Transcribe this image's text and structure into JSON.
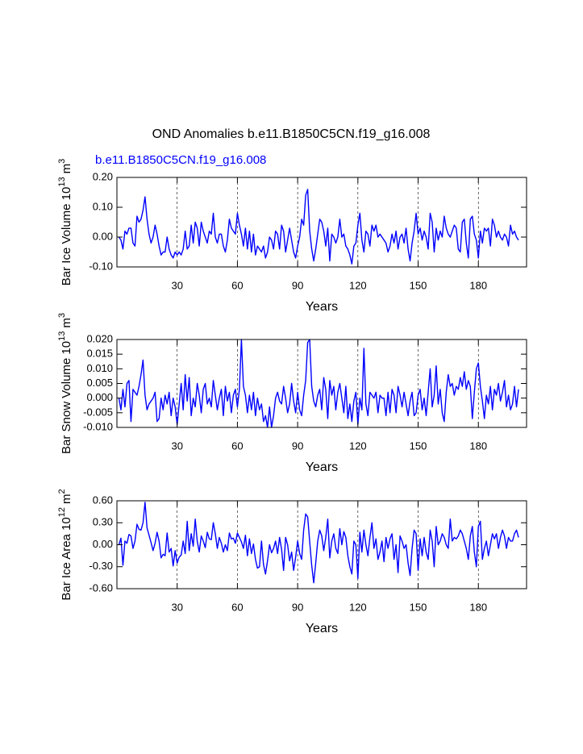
{
  "title": "OND Anomalies b.e11.B1850C5CN.f19_g16.008",
  "chart_data": [
    {
      "type": "line",
      "subtitle": "b.e11.B1850C5CN.f19_g16.008",
      "subtitle_color": "#0000ff",
      "ylabel": {
        "text": "Bar Ice Volume 10",
        "exponent": "13",
        "unit": "m",
        "unit_exponent": "3"
      },
      "xlabel": "Years",
      "xlim": [
        0,
        204
      ],
      "xticks": [
        30,
        60,
        90,
        120,
        150,
        180
      ],
      "ylim": [
        -0.1,
        0.2
      ],
      "yticks": [
        {
          "value": 0.2,
          "label": "0.20"
        },
        {
          "value": 0.1,
          "label": "0.10"
        },
        {
          "value": 0,
          "label": "0.00"
        },
        {
          "value": -0.1,
          "label": "-0.10"
        }
      ],
      "grid": "x-dashed",
      "color": "#0000ff",
      "x": [
        1,
        2,
        3,
        4,
        5,
        6,
        7,
        8,
        9,
        10,
        11,
        12,
        13,
        14,
        15,
        16,
        17,
        18,
        19,
        20,
        21,
        22,
        23,
        24,
        25,
        26,
        27,
        28,
        29,
        30,
        31,
        32,
        33,
        34,
        35,
        36,
        37,
        38,
        39,
        40,
        41,
        42,
        43,
        44,
        45,
        46,
        47,
        48,
        49,
        50,
        51,
        52,
        53,
        54,
        55,
        56,
        57,
        58,
        59,
        60,
        61,
        62,
        63,
        64,
        65,
        66,
        67,
        68,
        69,
        70,
        71,
        72,
        73,
        74,
        75,
        76,
        77,
        78,
        79,
        80,
        81,
        82,
        83,
        84,
        85,
        86,
        87,
        88,
        89,
        90,
        91,
        92,
        93,
        94,
        95,
        96,
        97,
        98,
        99,
        100,
        101,
        102,
        103,
        104,
        105,
        106,
        107,
        108,
        109,
        110,
        111,
        112,
        113,
        114,
        115,
        116,
        117,
        118,
        119,
        120,
        121,
        122,
        123,
        124,
        125,
        126,
        127,
        128,
        129,
        130,
        131,
        132,
        133,
        134,
        135,
        136,
        137,
        138,
        139,
        140,
        141,
        142,
        143,
        144,
        145,
        146,
        147,
        148,
        149,
        150,
        151,
        152,
        153,
        154,
        155,
        156,
        157,
        158,
        159,
        160,
        161,
        162,
        163,
        164,
        165,
        166,
        167,
        168,
        169,
        170,
        171,
        172,
        173,
        174,
        175,
        176,
        177,
        178,
        179,
        180,
        181,
        182,
        183,
        184,
        185,
        186,
        187,
        188,
        189,
        190,
        191,
        192,
        193,
        194,
        195,
        196,
        197,
        198,
        199,
        200
      ],
      "values": [
        0.0,
        -0.01,
        -0.04,
        0.02,
        0.01,
        0.03,
        0.03,
        -0.02,
        -0.03,
        0.07,
        0.05,
        0.06,
        0.09,
        0.135,
        0.06,
        0.01,
        -0.02,
        0.0,
        0.04,
        0.01,
        -0.03,
        -0.06,
        -0.05,
        -0.05,
        0.0,
        -0.04,
        -0.06,
        -0.07,
        -0.05,
        -0.06,
        -0.05,
        -0.06,
        -0.04,
        0.02,
        -0.04,
        -0.03,
        0.04,
        -0.02,
        0.05,
        0.03,
        -0.03,
        0.05,
        0.02,
        0.0,
        -0.02,
        0.02,
        0.01,
        0.08,
        0.0,
        -0.02,
        0.01,
        0.01,
        -0.03,
        -0.05,
        -0.01,
        0.06,
        0.03,
        0.02,
        0.01,
        0.08,
        0.04,
        0.01,
        -0.03,
        0.03,
        -0.04,
        0.02,
        -0.05,
        0.01,
        -0.06,
        -0.03,
        -0.04,
        -0.05,
        -0.03,
        -0.07,
        -0.05,
        0.0,
        -0.01,
        -0.04,
        0.02,
        0.01,
        -0.04,
        0.04,
        0.02,
        -0.05,
        -0.01,
        0.03,
        -0.01,
        -0.05,
        -0.07,
        -0.03,
        0.0,
        0.06,
        0.04,
        0.14,
        0.16,
        0.02,
        -0.04,
        -0.08,
        -0.04,
        0.01,
        0.06,
        0.05,
        0.02,
        -0.03,
        0.03,
        -0.08,
        0.01,
        0.0,
        -0.02,
        0.0,
        0.06,
        0.0,
        0.01,
        -0.03,
        -0.04,
        -0.06,
        -0.09,
        -0.03,
        -0.02,
        0.04,
        0.08,
        -0.01,
        -0.05,
        0.02,
        0.01,
        -0.03,
        0.04,
        0.02,
        0.04,
        0.0,
        0.01,
        0.0,
        -0.01,
        -0.02,
        -0.05,
        -0.03,
        0.01,
        -0.02,
        0.02,
        -0.04,
        0.0,
        0.01,
        -0.02,
        0.03,
        -0.04,
        -0.08,
        -0.02,
        0.02,
        0.08,
        0.01,
        0.03,
        -0.01,
        0.02,
        0.0,
        -0.04,
        0.08,
        0.05,
        -0.05,
        0.03,
        -0.01,
        0.02,
        0.0,
        0.07,
        0.03,
        0.01,
        0.0,
        0.02,
        0.04,
        0.03,
        -0.04,
        -0.05,
        0.05,
        0.06,
        -0.02,
        -0.07,
        0.06,
        0.07,
        0.01,
        -0.01,
        -0.07,
        0.02,
        -0.02,
        0.03,
        0.02,
        0.03,
        -0.03,
        0.06,
        0.04,
        0.0,
        0.02,
        0.0,
        -0.01,
        0.01,
        0.0,
        -0.03,
        0.04,
        0.01,
        0.02,
        0.0,
        -0.01
      ]
    },
    {
      "type": "line",
      "ylabel": {
        "text": "Bar Snow Volume 10",
        "exponent": "13",
        "unit": "m",
        "unit_exponent": "3"
      },
      "xlabel": "Years",
      "xlim": [
        0,
        204
      ],
      "xticks": [
        30,
        60,
        90,
        120,
        150,
        180
      ],
      "ylim": [
        -0.01,
        0.02
      ],
      "yticks": [
        {
          "value": 0.02,
          "label": "0.020"
        },
        {
          "value": 0.015,
          "label": "0.015"
        },
        {
          "value": 0.01,
          "label": "0.010"
        },
        {
          "value": 0.005,
          "label": "0.005"
        },
        {
          "value": 0,
          "label": "0.000"
        },
        {
          "value": -0.005,
          "label": "-0.005"
        },
        {
          "value": -0.01,
          "label": "-0.010"
        }
      ],
      "grid": "x-dashed",
      "color": "#0000ff",
      "x": [
        1,
        2,
        3,
        4,
        5,
        6,
        7,
        8,
        9,
        10,
        11,
        12,
        13,
        14,
        15,
        16,
        17,
        18,
        19,
        20,
        21,
        22,
        23,
        24,
        25,
        26,
        27,
        28,
        29,
        30,
        31,
        32,
        33,
        34,
        35,
        36,
        37,
        38,
        39,
        40,
        41,
        42,
        43,
        44,
        45,
        46,
        47,
        48,
        49,
        50,
        51,
        52,
        53,
        54,
        55,
        56,
        57,
        58,
        59,
        60,
        61,
        62,
        63,
        64,
        65,
        66,
        67,
        68,
        69,
        70,
        71,
        72,
        73,
        74,
        75,
        76,
        77,
        78,
        79,
        80,
        81,
        82,
        83,
        84,
        85,
        86,
        87,
        88,
        89,
        90,
        91,
        92,
        93,
        94,
        95,
        96,
        97,
        98,
        99,
        100,
        101,
        102,
        103,
        104,
        105,
        106,
        107,
        108,
        109,
        110,
        111,
        112,
        113,
        114,
        115,
        116,
        117,
        118,
        119,
        120,
        121,
        122,
        123,
        124,
        125,
        126,
        127,
        128,
        129,
        130,
        131,
        132,
        133,
        134,
        135,
        136,
        137,
        138,
        139,
        140,
        141,
        142,
        143,
        144,
        145,
        146,
        147,
        148,
        149,
        150,
        151,
        152,
        153,
        154,
        155,
        156,
        157,
        158,
        159,
        160,
        161,
        162,
        163,
        164,
        165,
        166,
        167,
        168,
        169,
        170,
        171,
        172,
        173,
        174,
        175,
        176,
        177,
        178,
        179,
        180,
        181,
        182,
        183,
        184,
        185,
        186,
        187,
        188,
        189,
        190,
        191,
        192,
        193,
        194,
        195,
        196,
        197,
        198,
        199,
        200
      ],
      "values": [
        0.0,
        -0.004,
        0.003,
        -0.003,
        0.005,
        0.006,
        -0.008,
        0.003,
        0.002,
        0.001,
        0.004,
        0.008,
        0.013,
        0.001,
        -0.004,
        -0.002,
        -0.001,
        0.0,
        0.002,
        -0.008,
        -0.007,
        0.0,
        -0.004,
        0.001,
        -0.002,
        0.002,
        -0.006,
        0.0,
        -0.003,
        -0.009,
        -0.002,
        0.005,
        -0.004,
        0.008,
        -0.001,
        0.007,
        -0.006,
        0.0,
        -0.003,
        0.005,
        0.001,
        -0.005,
        0.003,
        0.005,
        -0.002,
        0.0,
        -0.003,
        0.006,
        0.001,
        -0.004,
        0.0,
        0.003,
        -0.006,
        0.004,
        -0.001,
        0.002,
        -0.005,
        0.001,
        0.003,
        -0.003,
        0.003,
        0.02,
        0.004,
        0.001,
        -0.005,
        0.001,
        -0.004,
        0.002,
        -0.006,
        0.0,
        -0.004,
        -0.002,
        -0.008,
        -0.006,
        -0.01,
        -0.003,
        -0.01,
        -0.006,
        0.0,
        0.002,
        -0.001,
        -0.002,
        0.004,
        0.0,
        -0.005,
        -0.002,
        0.005,
        -0.001,
        -0.005,
        0.002,
        -0.004,
        -0.006,
        0.001,
        0.006,
        0.019,
        0.02,
        0.004,
        -0.001,
        -0.003,
        0.001,
        0.003,
        -0.004,
        0.007,
        0.003,
        -0.007,
        0.006,
        0.001,
        0.004,
        -0.004,
        0.002,
        0.005,
        0.0,
        -0.005,
        0.004,
        -0.007,
        -0.002,
        -0.008,
        -0.001,
        0.002,
        -0.009,
        0.0,
        -0.004,
        0.017,
        -0.002,
        -0.006,
        0.002,
        0.001,
        0.0,
        0.002,
        -0.005,
        0.001,
        0.0,
        0.0,
        -0.006,
        0.002,
        -0.005,
        0.003,
        0.001,
        -0.005,
        0.004,
        0.001,
        -0.003,
        0.002,
        -0.002,
        -0.006,
        -0.001,
        0.002,
        -0.006,
        -0.005,
        0.001,
        0.003,
        -0.004,
        0.0,
        -0.006,
        0.002,
        0.01,
        -0.003,
        0.001,
        0.011,
        -0.002,
        0.003,
        -0.005,
        -0.008,
        0.002,
        0.008,
        0.004,
        0.005,
        0.001,
        0.004,
        0.003,
        0.007,
        0.004,
        0.009,
        0.003,
        0.006,
        0.004,
        -0.007,
        0.002,
        0.01,
        0.012,
        0.004,
        -0.001,
        -0.007,
        0.001,
        -0.002,
        0.004,
        -0.004,
        0.003,
        0.001,
        0.005,
        -0.001,
        0.002,
        0.006,
        -0.003,
        0.001,
        -0.004,
        -0.002,
        0.004,
        -0.003,
        0.003
      ]
    },
    {
      "type": "line",
      "ylabel": {
        "text": "Bar Ice Area 10",
        "exponent": "12",
        "unit": "m",
        "unit_exponent": "2"
      },
      "xlabel": "Years",
      "xlim": [
        0,
        204
      ],
      "xticks": [
        30,
        60,
        90,
        120,
        150,
        180
      ],
      "ylim": [
        -0.6,
        0.6
      ],
      "yticks": [
        {
          "value": 0.6,
          "label": "0.60"
        },
        {
          "value": 0.3,
          "label": "0.30"
        },
        {
          "value": 0,
          "label": "0.00"
        },
        {
          "value": -0.3,
          "label": "-0.30"
        },
        {
          "value": -0.6,
          "label": "-0.60"
        }
      ],
      "grid": "x-dashed",
      "color": "#0000ff",
      "x": [
        1,
        2,
        3,
        4,
        5,
        6,
        7,
        8,
        9,
        10,
        11,
        12,
        13,
        14,
        15,
        16,
        17,
        18,
        19,
        20,
        21,
        22,
        23,
        24,
        25,
        26,
        27,
        28,
        29,
        30,
        31,
        32,
        33,
        34,
        35,
        36,
        37,
        38,
        39,
        40,
        41,
        42,
        43,
        44,
        45,
        46,
        47,
        48,
        49,
        50,
        51,
        52,
        53,
        54,
        55,
        56,
        57,
        58,
        59,
        60,
        61,
        62,
        63,
        64,
        65,
        66,
        67,
        68,
        69,
        70,
        71,
        72,
        73,
        74,
        75,
        76,
        77,
        78,
        79,
        80,
        81,
        82,
        83,
        84,
        85,
        86,
        87,
        88,
        89,
        90,
        91,
        92,
        93,
        94,
        95,
        96,
        97,
        98,
        99,
        100,
        101,
        102,
        103,
        104,
        105,
        106,
        107,
        108,
        109,
        110,
        111,
        112,
        113,
        114,
        115,
        116,
        117,
        118,
        119,
        120,
        121,
        122,
        123,
        124,
        125,
        126,
        127,
        128,
        129,
        130,
        131,
        132,
        133,
        134,
        135,
        136,
        137,
        138,
        139,
        140,
        141,
        142,
        143,
        144,
        145,
        146,
        147,
        148,
        149,
        150,
        151,
        152,
        153,
        154,
        155,
        156,
        157,
        158,
        159,
        160,
        161,
        162,
        163,
        164,
        165,
        166,
        167,
        168,
        169,
        170,
        171,
        172,
        173,
        174,
        175,
        176,
        177,
        178,
        179,
        180,
        181,
        182,
        183,
        184,
        185,
        186,
        187,
        188,
        189,
        190,
        191,
        192,
        193,
        194,
        195,
        196,
        197,
        198,
        199,
        200
      ],
      "values": [
        0.0,
        0.09,
        -0.28,
        0.05,
        0.02,
        0.14,
        0.12,
        -0.05,
        0.05,
        0.28,
        0.21,
        0.2,
        0.3,
        0.58,
        0.23,
        0.13,
        0.03,
        -0.08,
        0.02,
        0.17,
        0.05,
        -0.18,
        -0.13,
        -0.15,
        0.16,
        -0.1,
        -0.05,
        -0.29,
        -0.08,
        -0.25,
        -0.17,
        -0.14,
        0.05,
        -0.12,
        0.32,
        -0.08,
        0.15,
        -0.02,
        0.35,
        0.05,
        -0.1,
        0.12,
        0.05,
        -0.04,
        0.17,
        0.08,
        0.07,
        0.3,
        0.15,
        -0.05,
        0.1,
        0.02,
        -0.1,
        0.0,
        -0.08,
        0.16,
        0.08,
        0.09,
        0.02,
        0.16,
        0.1,
        0.04,
        -0.05,
        0.13,
        -0.15,
        0.08,
        -0.12,
        0.01,
        -0.2,
        -0.32,
        -0.3,
        0.05,
        -0.27,
        -0.4,
        -0.22,
        0.0,
        -0.11,
        -0.05,
        0.05,
        -0.12,
        0.1,
        -0.06,
        -0.35,
        0.1,
        0.0,
        -0.22,
        -0.1,
        -0.35,
        -0.17,
        0.05,
        -0.12,
        -0.2,
        0.2,
        0.42,
        0.38,
        0.04,
        -0.28,
        -0.52,
        -0.25,
        0.05,
        0.2,
        0.12,
        -0.08,
        0.1,
        0.35,
        -0.18,
        0.05,
        0.15,
        -0.05,
        -0.12,
        0.22,
        0.0,
        0.18,
        0.1,
        -0.15,
        -0.3,
        -0.4,
        0.05,
        0.0,
        -0.46,
        0.17,
        -0.1,
        0.2,
        0.0,
        -0.15,
        0.1,
        0.3,
        -0.05,
        0.08,
        -0.2,
        -0.1,
        0.05,
        -0.23,
        0.1,
        -0.05,
        0.08,
        0.15,
        -0.2,
        0.0,
        -0.38,
        0.12,
        0.05,
        -0.05,
        0.0,
        -0.25,
        -0.42,
        -0.05,
        0.2,
        0.15,
        -0.35,
        0.08,
        -0.15,
        0.1,
        -0.1,
        -0.2,
        0.2,
        0.05,
        -0.3,
        0.25,
        0.0,
        0.05,
        0.15,
        0.1,
        0.0,
        -0.05,
        0.35,
        0.05,
        0.1,
        0.08,
        0.12,
        0.2,
        0.15,
        0.05,
        -0.05,
        -0.2,
        0.12,
        0.25,
        -0.1,
        -0.3,
        0.25,
        0.32,
        -0.2,
        -0.05,
        0.05,
        -0.15,
        0.0,
        0.15,
        0.08,
        0.15,
        -0.05,
        0.1,
        0.2,
        0.12,
        -0.05,
        0.1,
        0.05,
        0.05,
        0.15,
        0.2,
        0.1
      ]
    }
  ]
}
